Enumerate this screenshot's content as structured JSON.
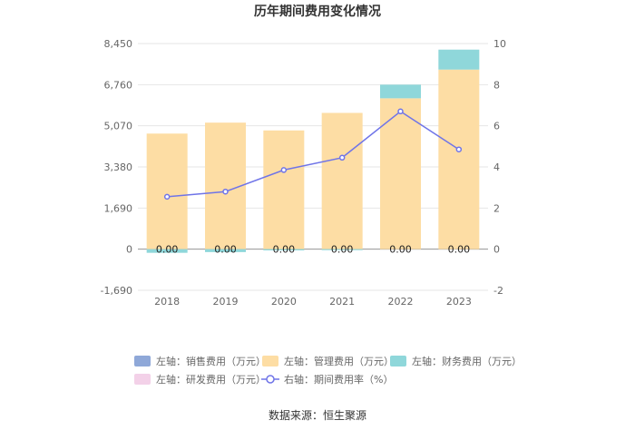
{
  "chart_data": {
    "type": "bar",
    "title": "历年期间费用变化情况",
    "categories": [
      "2018",
      "2019",
      "2020",
      "2021",
      "2022",
      "2023"
    ],
    "left_axis": {
      "min": -1690,
      "max": 8450,
      "ticks": [
        "-1,690",
        "0",
        "1,690",
        "3,380",
        "5,070",
        "6,760",
        "8,450"
      ],
      "tick_values": [
        -1690,
        0,
        1690,
        3380,
        5070,
        6760,
        8450
      ]
    },
    "right_axis": {
      "min": -2,
      "max": 10,
      "ticks": [
        "-2",
        "0",
        "2",
        "4",
        "6",
        "8",
        "10"
      ],
      "tick_values": [
        -2,
        0,
        2,
        4,
        6,
        8,
        10
      ]
    },
    "series": [
      {
        "name": "左轴：销售费用（万元）",
        "axis": "left",
        "kind": "bar",
        "color": "#8fa8d8",
        "values": [
          0,
          0,
          0,
          0,
          0,
          0
        ]
      },
      {
        "name": "左轴：管理费用（万元）",
        "axis": "left",
        "kind": "bar",
        "color": "#fddda4",
        "values": [
          4750,
          5200,
          4880,
          5600,
          6200,
          7380
        ]
      },
      {
        "name": "左轴：财务费用（万元）",
        "axis": "left",
        "kind": "bar",
        "color": "#8fd7da",
        "values": [
          -150,
          -120,
          -50,
          -40,
          560,
          820
        ]
      },
      {
        "name": "左轴：研发费用（万元）",
        "axis": "left",
        "kind": "bar",
        "color": "#f3d1e8",
        "values": [
          0,
          0,
          0,
          0,
          0,
          0
        ]
      },
      {
        "name": "右轴：期间费用率（%）",
        "axis": "right",
        "kind": "line",
        "color": "#6f74e8",
        "values": [
          2.55,
          2.8,
          3.85,
          4.45,
          6.7,
          4.85
        ]
      }
    ],
    "data_labels": [
      "0.00",
      "0.00",
      "0.00",
      "0.00",
      "0.00",
      "0.00"
    ],
    "legend_position": "bottom",
    "grid": true
  },
  "source": "数据来源：恒生聚源"
}
